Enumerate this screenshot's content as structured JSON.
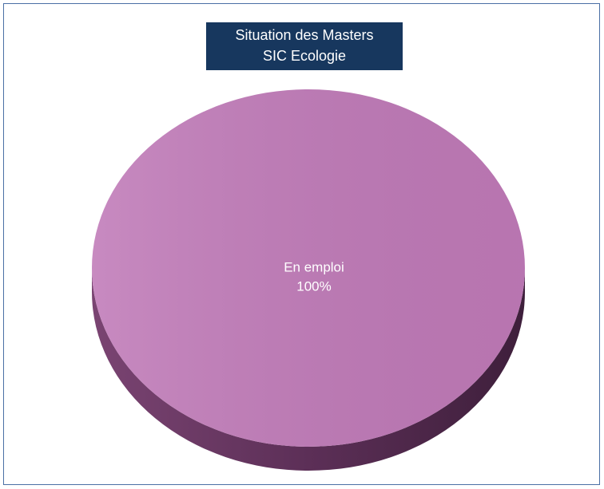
{
  "chart_data": {
    "type": "pie",
    "title": [
      "Situation des Masters",
      "SIC Ecologie"
    ],
    "categories": [
      "En emploi"
    ],
    "values": [
      100
    ],
    "value_labels": [
      "100%"
    ],
    "colors": [
      "#c07ab8"
    ]
  }
}
